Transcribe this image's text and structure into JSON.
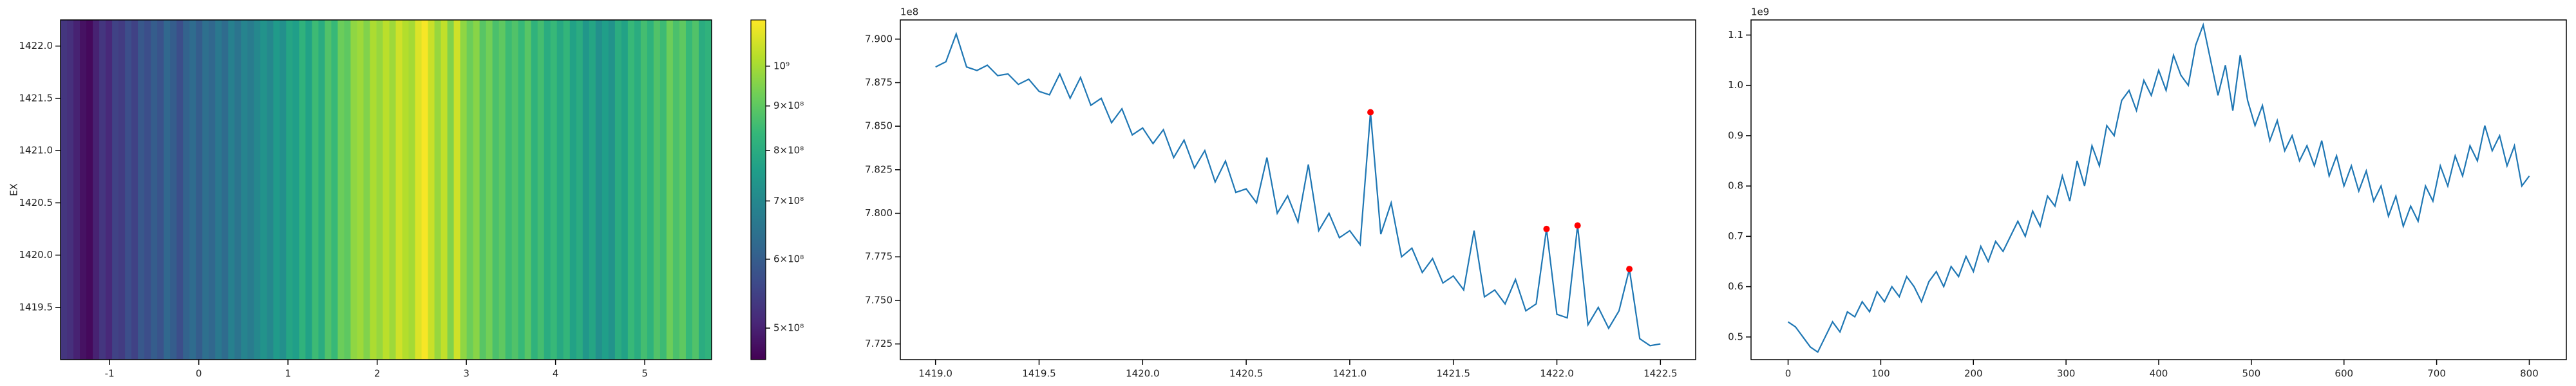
{
  "chart_data": [
    {
      "type": "heatmap",
      "y_label": "EX",
      "colormap": "viridis",
      "color_log": true,
      "xlim": [
        -1.55,
        5.75
      ],
      "ylim": [
        1419.0,
        1422.25
      ],
      "xticks": [
        -1,
        0,
        1,
        2,
        3,
        4,
        5
      ],
      "yticks": [
        {
          "value": 1419.5,
          "label": "1419.5"
        },
        {
          "value": 1420,
          "label": "1420.0"
        },
        {
          "value": 1420.5,
          "label": "1420.5"
        },
        {
          "value": 1421,
          "label": "1421.0"
        },
        {
          "value": 1421.5,
          "label": "1421.5"
        },
        {
          "value": 1422,
          "label": "1422.0"
        }
      ],
      "clim": [
        460000000.0,
        1130000000.0
      ],
      "cticks": [
        {
          "value": 500000000.0,
          "label": "5×10⁸"
        },
        {
          "value": 600000000.0,
          "label": "6×10⁸"
        },
        {
          "value": 700000000.0,
          "label": "7×10⁸"
        },
        {
          "value": 800000000.0,
          "label": "8×10⁸"
        },
        {
          "value": 900000000.0,
          "label": "9×10⁸"
        },
        {
          "value": 1000000000.0,
          "label": "10⁹"
        }
      ],
      "values": [
        530000000.0,
        520000000.0,
        500000000.0,
        480000000.0,
        470000000.0,
        500000000.0,
        530000000.0,
        510000000.0,
        550000000.0,
        540000000.0,
        570000000.0,
        550000000.0,
        590000000.0,
        570000000.0,
        600000000.0,
        580000000.0,
        620000000.0,
        600000000.0,
        570000000.0,
        610000000.0,
        630000000.0,
        600000000.0,
        640000000.0,
        620000000.0,
        660000000.0,
        630000000.0,
        680000000.0,
        650000000.0,
        690000000.0,
        670000000.0,
        700000000.0,
        730000000.0,
        700000000.0,
        750000000.0,
        720000000.0,
        780000000.0,
        760000000.0,
        820000000.0,
        770000000.0,
        850000000.0,
        800000000.0,
        880000000.0,
        840000000.0,
        920000000.0,
        900000000.0,
        970000000.0,
        990000000.0,
        950000000.0,
        1010000000.0,
        980000000.0,
        1030000000.0,
        990000000.0,
        1060000000.0,
        1020000000.0,
        1000000000.0,
        1080000000.0,
        1120000000.0,
        1050000000.0,
        980000000.0,
        1040000000.0,
        950000000.0,
        1060000000.0,
        970000000.0,
        920000000.0,
        960000000.0,
        890000000.0,
        930000000.0,
        870000000.0,
        900000000.0,
        850000000.0,
        880000000.0,
        840000000.0,
        890000000.0,
        820000000.0,
        860000000.0,
        800000000.0,
        840000000.0,
        790000000.0,
        830000000.0,
        770000000.0,
        800000000.0,
        740000000.0,
        780000000.0,
        720000000.0,
        760000000.0,
        730000000.0,
        800000000.0,
        770000000.0,
        840000000.0,
        800000000.0,
        860000000.0,
        820000000.0,
        880000000.0,
        850000000.0,
        920000000.0,
        870000000.0,
        900000000.0,
        840000000.0,
        880000000.0,
        800000000.0,
        820000000.0
      ]
    },
    {
      "type": "line",
      "offset_text": "1e8",
      "xlim": [
        1418.83,
        1422.67
      ],
      "ylim": [
        7.716,
        7.911
      ],
      "xticks": [
        {
          "value": 1419,
          "label": "1419.0"
        },
        {
          "value": 1419.5,
          "label": "1419.5"
        },
        {
          "value": 1420,
          "label": "1420.0"
        },
        {
          "value": 1420.5,
          "label": "1420.5"
        },
        {
          "value": 1421,
          "label": "1421.0"
        },
        {
          "value": 1421.5,
          "label": "1421.5"
        },
        {
          "value": 1422,
          "label": "1422.0"
        },
        {
          "value": 1422.5,
          "label": "1422.5"
        }
      ],
      "yticks": [
        7.725,
        {
          "value": 7.75,
          "label": "7.750"
        },
        7.775,
        {
          "value": 7.8,
          "label": "7.800"
        },
        7.825,
        {
          "value": 7.85,
          "label": "7.850"
        },
        7.875,
        {
          "value": 7.9,
          "label": "7.900"
        }
      ],
      "series": [
        {
          "color": "#1f77b4",
          "x": [
            1419.0,
            1419.05,
            1419.1,
            1419.15,
            1419.2,
            1419.25,
            1419.3,
            1419.35,
            1419.4,
            1419.45,
            1419.5,
            1419.55,
            1419.6,
            1419.65,
            1419.7,
            1419.75,
            1419.8,
            1419.85,
            1419.9,
            1419.95,
            1420.0,
            1420.05,
            1420.1,
            1420.15,
            1420.2,
            1420.25,
            1420.3,
            1420.35,
            1420.4,
            1420.45,
            1420.5,
            1420.55,
            1420.6,
            1420.65,
            1420.7,
            1420.75,
            1420.8,
            1420.85,
            1420.9,
            1420.95,
            1421.0,
            1421.05,
            1421.1,
            1421.15,
            1421.2,
            1421.25,
            1421.3,
            1421.35,
            1421.4,
            1421.45,
            1421.5,
            1421.55,
            1421.6,
            1421.65,
            1421.7,
            1421.75,
            1421.8,
            1421.85,
            1421.9,
            1421.95,
            1422.0,
            1422.05,
            1422.1,
            1422.15,
            1422.2,
            1422.25,
            1422.3,
            1422.35,
            1422.4,
            1422.45,
            1422.5
          ],
          "values": [
            7.884,
            7.887,
            7.903,
            7.884,
            7.882,
            7.885,
            7.879,
            7.88,
            7.874,
            7.877,
            7.87,
            7.868,
            7.88,
            7.866,
            7.878,
            7.862,
            7.866,
            7.852,
            7.86,
            7.845,
            7.849,
            7.84,
            7.848,
            7.832,
            7.842,
            7.826,
            7.836,
            7.818,
            7.83,
            7.812,
            7.814,
            7.806,
            7.832,
            7.8,
            7.81,
            7.795,
            7.828,
            7.79,
            7.8,
            7.786,
            7.79,
            7.782,
            7.858,
            7.788,
            7.806,
            7.775,
            7.78,
            7.766,
            7.774,
            7.76,
            7.764,
            7.756,
            7.79,
            7.752,
            7.756,
            7.748,
            7.762,
            7.744,
            7.748,
            7.791,
            7.742,
            7.74,
            7.793,
            7.736,
            7.746,
            7.734,
            7.744,
            7.768,
            7.728,
            7.724,
            7.725
          ]
        }
      ],
      "peaks": {
        "color": "#ff0000",
        "x": [
          1421.1,
          1421.95,
          1422.1,
          1422.35
        ],
        "values": [
          7.858,
          7.791,
          7.793,
          7.768
        ]
      }
    },
    {
      "type": "line",
      "offset_text": "1e9",
      "xlim": [
        -40,
        840
      ],
      "ylim": [
        0.455,
        1.13
      ],
      "xticks": [
        0,
        100,
        200,
        300,
        400,
        500,
        600,
        700,
        800
      ],
      "yticks": [
        0.5,
        0.6,
        0.7,
        0.8,
        0.9,
        {
          "value": 1,
          "label": "1.0"
        },
        1.1
      ],
      "series": [
        {
          "color": "#1f77b4",
          "x": [
            0,
            8,
            16,
            24,
            32,
            40,
            48,
            56,
            64,
            72,
            80,
            88,
            96,
            104,
            112,
            120,
            128,
            136,
            144,
            152,
            160,
            168,
            176,
            184,
            192,
            200,
            208,
            216,
            224,
            232,
            240,
            248,
            256,
            264,
            272,
            280,
            288,
            296,
            304,
            312,
            320,
            328,
            336,
            344,
            352,
            360,
            368,
            376,
            384,
            392,
            400,
            408,
            416,
            424,
            432,
            440,
            448,
            456,
            464,
            472,
            480,
            488,
            496,
            504,
            512,
            520,
            528,
            536,
            544,
            552,
            560,
            568,
            576,
            584,
            592,
            600,
            608,
            616,
            624,
            632,
            640,
            648,
            656,
            664,
            672,
            680,
            688,
            696,
            704,
            712,
            720,
            728,
            736,
            744,
            752,
            760,
            768,
            776,
            784,
            792,
            800
          ],
          "values": [
            0.53,
            0.52,
            0.5,
            0.48,
            0.47,
            0.5,
            0.53,
            0.51,
            0.55,
            0.54,
            0.57,
            0.55,
            0.59,
            0.57,
            0.6,
            0.58,
            0.62,
            0.6,
            0.57,
            0.61,
            0.63,
            0.6,
            0.64,
            0.62,
            0.66,
            0.63,
            0.68,
            0.65,
            0.69,
            0.67,
            0.7,
            0.73,
            0.7,
            0.75,
            0.72,
            0.78,
            0.76,
            0.82,
            0.77,
            0.85,
            0.8,
            0.88,
            0.84,
            0.92,
            0.9,
            0.97,
            0.99,
            0.95,
            1.01,
            0.98,
            1.03,
            0.99,
            1.06,
            1.02,
            1.0,
            1.08,
            1.12,
            1.05,
            0.98,
            1.04,
            0.95,
            1.06,
            0.97,
            0.92,
            0.96,
            0.89,
            0.93,
            0.87,
            0.9,
            0.85,
            0.88,
            0.84,
            0.89,
            0.82,
            0.86,
            0.8,
            0.84,
            0.79,
            0.83,
            0.77,
            0.8,
            0.74,
            0.78,
            0.72,
            0.76,
            0.73,
            0.8,
            0.77,
            0.84,
            0.8,
            0.86,
            0.82,
            0.88,
            0.85,
            0.92,
            0.87,
            0.9,
            0.84,
            0.88,
            0.8,
            0.82
          ]
        }
      ]
    }
  ]
}
